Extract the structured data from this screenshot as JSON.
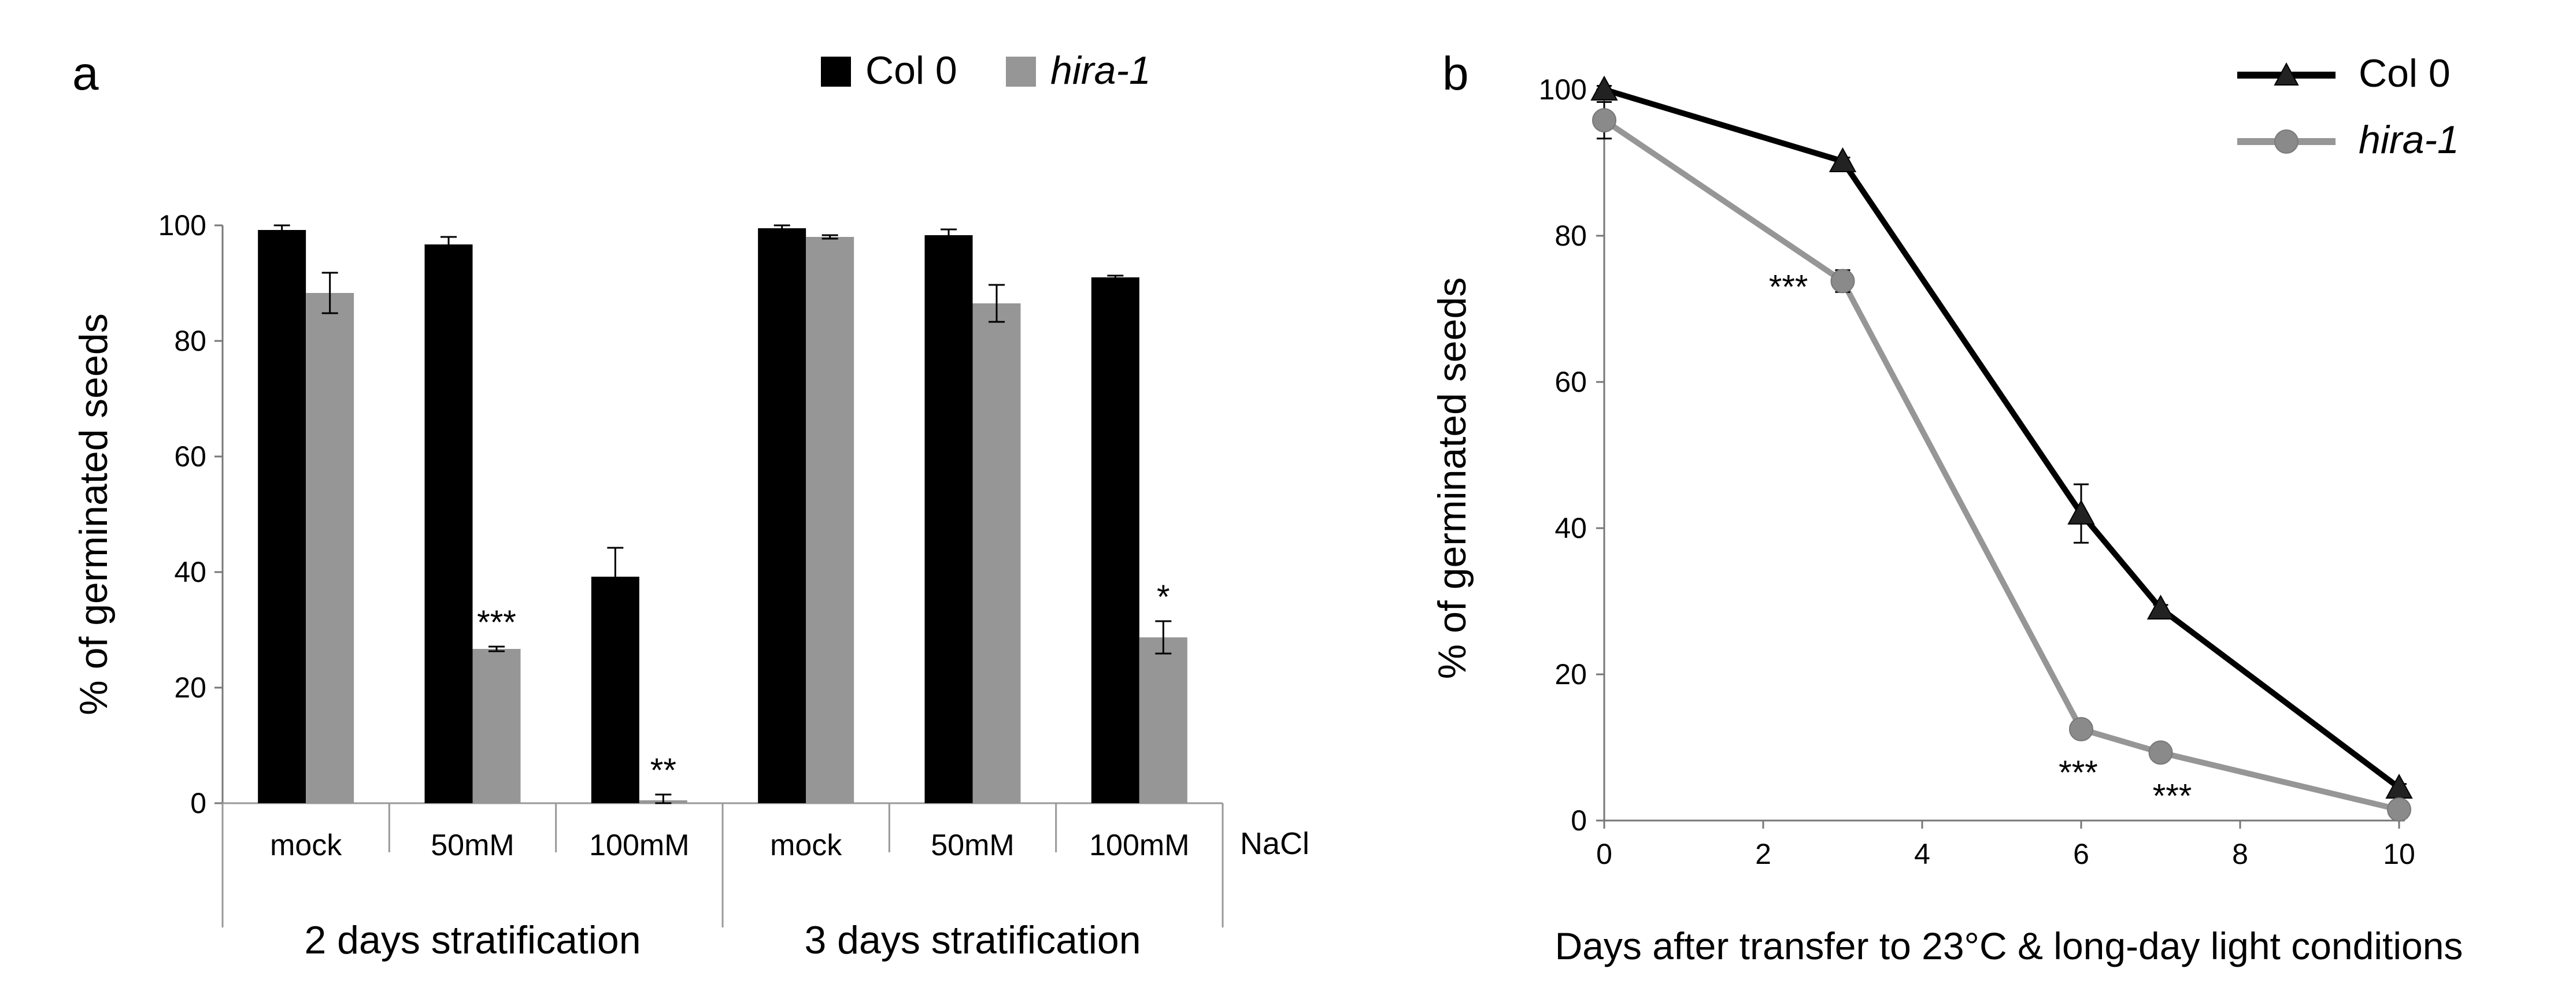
{
  "chart_data": [
    {
      "type": "bar",
      "panel_label": "a",
      "ylabel": "% of germinated seeds",
      "ylim": [
        0,
        100
      ],
      "yticks": [
        0,
        20,
        40,
        60,
        80,
        100
      ],
      "x_axis_suffix": "NaCl",
      "groups": [
        {
          "label": "2 days stratification",
          "categories": [
            "mock",
            "50mM",
            "100mM"
          ]
        },
        {
          "label": "3 days stratification",
          "categories": [
            "mock",
            "50mM",
            "100mM"
          ]
        }
      ],
      "categories": [
        "mock",
        "50mM",
        "100mM",
        "mock",
        "50mM",
        "100mM"
      ],
      "series": [
        {
          "name": "Col 0",
          "italic": false,
          "color": "#000000",
          "values": [
            99.2,
            96.7,
            39.2,
            99.5,
            98.3,
            91.0
          ],
          "errors": [
            0.8,
            1.3,
            5.0,
            0.5,
            1.0,
            0.3
          ],
          "significance": [
            "",
            "",
            "",
            "",
            "",
            ""
          ]
        },
        {
          "name": "hira-1",
          "italic": true,
          "color": "#969696",
          "values": [
            88.3,
            26.7,
            0.5,
            98.0,
            86.5,
            28.7
          ],
          "errors": [
            3.5,
            0.4,
            1.0,
            0.3,
            3.2,
            2.8
          ],
          "significance": [
            "",
            "***",
            "**",
            "",
            "",
            "*"
          ]
        }
      ]
    },
    {
      "type": "line",
      "panel_label": "b",
      "xlabel": "Days after transfer to 23°C & long-day light conditions",
      "ylabel": "% of germinated seeds",
      "xlim": [
        0,
        10
      ],
      "ylim": [
        0,
        100
      ],
      "xticks": [
        0,
        2,
        4,
        6,
        8,
        10
      ],
      "yticks": [
        0,
        20,
        40,
        60,
        80,
        100
      ],
      "series": [
        {
          "name": "Col 0",
          "italic": false,
          "color": "#000000",
          "marker": "triangle",
          "x": [
            0,
            3,
            6,
            7,
            10
          ],
          "y": [
            100,
            90.2,
            42.0,
            29.0,
            4.5
          ],
          "errors": [
            0.5,
            0.5,
            4.0,
            0.5,
            0.5
          ],
          "significance": [
            "",
            "",
            "",
            "",
            ""
          ]
        },
        {
          "name": "hira-1",
          "italic": true,
          "color": "#969696",
          "marker": "circle",
          "x": [
            0,
            3,
            6,
            7,
            10
          ],
          "y": [
            95.8,
            73.8,
            12.5,
            9.3,
            1.5
          ],
          "errors": [
            2.5,
            1.5,
            0.5,
            0.5,
            0.5
          ],
          "significance": [
            "",
            "***",
            "***",
            "***",
            ""
          ]
        }
      ]
    }
  ]
}
